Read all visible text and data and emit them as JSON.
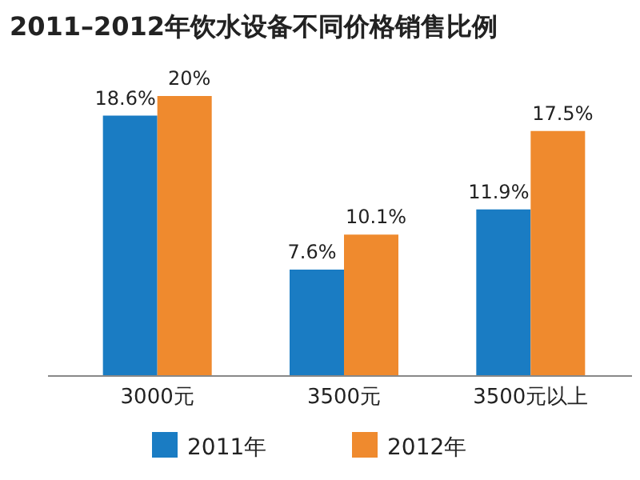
{
  "chart_data": {
    "type": "bar",
    "title": "2011–2012年饮水设备不同价格销售比例",
    "categories": [
      "3000元",
      "3500元",
      "3500元以上"
    ],
    "series": [
      {
        "name": "2011年",
        "color": "#1a7cc3",
        "values": [
          18.6,
          7.6,
          11.9
        ],
        "value_labels": [
          "18.6%",
          "7.6%",
          "11.9%"
        ]
      },
      {
        "name": "2012年",
        "color": "#ef8a2e",
        "values": [
          20,
          10.1,
          17.5
        ],
        "value_labels": [
          "20%",
          "10.1%",
          "17.5%"
        ]
      }
    ],
    "legend": "bottom"
  }
}
